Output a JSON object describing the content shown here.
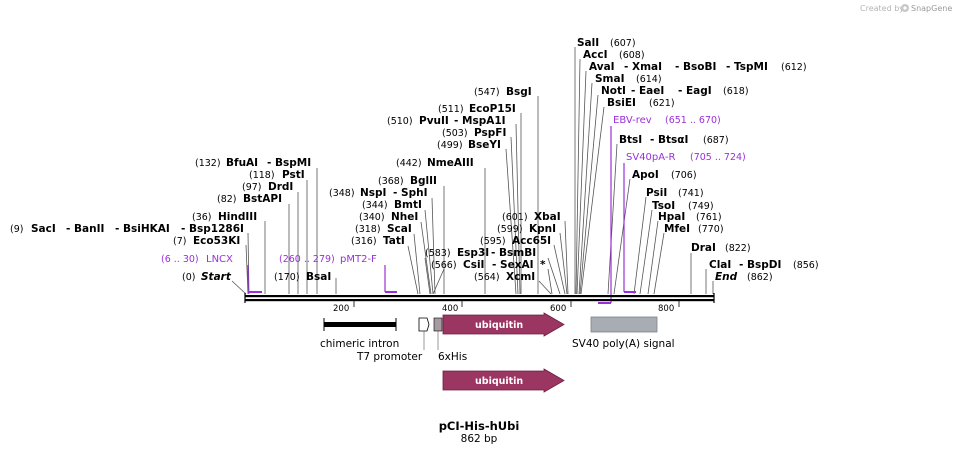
{
  "header": {
    "credit_prefix": "Created by",
    "credit_brand": "SnapGene"
  },
  "plasmid": {
    "name": "pCI-His-hUbi",
    "length_label": "862 bp",
    "length_bp": 862
  },
  "ruler": {
    "ticks": [
      "200",
      "400",
      "600",
      "800"
    ]
  },
  "sites": [
    {
      "pos": "(607)",
      "names": [
        "SalI"
      ]
    },
    {
      "pos": "(608)",
      "names": [
        "AccI"
      ]
    },
    {
      "pos": "(612)",
      "names": [
        "AvaI",
        "- XmaI",
        "- BsoBI",
        "- TspMI"
      ]
    },
    {
      "pos": "(614)",
      "names": [
        "SmaI"
      ]
    },
    {
      "pos": "(618)",
      "names": [
        "NotI",
        "- EaeI",
        "- EagI"
      ]
    },
    {
      "pos": "(621)",
      "names": [
        "BsiEI"
      ]
    },
    {
      "pos": "(687)",
      "names": [
        "BtsI",
        "- BtsαI"
      ]
    },
    {
      "pos": "(706)",
      "names": [
        "ApoI"
      ]
    },
    {
      "pos": "(741)",
      "names": [
        "PsiI"
      ]
    },
    {
      "pos": "(749)",
      "names": [
        "TsoI"
      ]
    },
    {
      "pos": "(761)",
      "names": [
        "HpaI"
      ]
    },
    {
      "pos": "(770)",
      "names": [
        "MfeI"
      ]
    },
    {
      "pos": "(822)",
      "names": [
        "DraI"
      ]
    },
    {
      "pos": "(856)",
      "names": [
        "ClaI",
        "- BspDI"
      ]
    },
    {
      "pos": "(862)",
      "names": [
        "End"
      ]
    },
    {
      "pos": "(547)",
      "names": [
        "BsgI"
      ]
    },
    {
      "pos": "(511)",
      "names": [
        "EcoP15I"
      ]
    },
    {
      "pos": "(510)",
      "names": [
        "PvuII",
        "- MspA1I"
      ]
    },
    {
      "pos": "(503)",
      "names": [
        "PspFI"
      ]
    },
    {
      "pos": "(499)",
      "names": [
        "BseYI"
      ]
    },
    {
      "pos": "(442)",
      "names": [
        "NmeAIII"
      ]
    },
    {
      "pos": "(132)",
      "names": [
        "BfuAI",
        "- BspMI"
      ]
    },
    {
      "pos": "(118)",
      "names": [
        "PstI"
      ]
    },
    {
      "pos": "(97)",
      "names": [
        "DrdI"
      ]
    },
    {
      "pos": "(82)",
      "names": [
        "BstAPI"
      ]
    },
    {
      "pos": "(36)",
      "names": [
        "HindIII"
      ]
    },
    {
      "pos": "(9)",
      "names": [
        "SacI",
        "- BanII",
        "- BsiHKAI",
        "- Bsp1286I"
      ]
    },
    {
      "pos": "(7)",
      "names": [
        "Eco53KI"
      ]
    },
    {
      "pos": "(0)",
      "names": [
        "Start"
      ]
    },
    {
      "pos": "(170)",
      "names": [
        "BsaI"
      ]
    },
    {
      "pos": "(368)",
      "names": [
        "BglII"
      ]
    },
    {
      "pos": "(348)",
      "names": [
        "NspI",
        "- SphI"
      ]
    },
    {
      "pos": "(344)",
      "names": [
        "BmtI"
      ]
    },
    {
      "pos": "(340)",
      "names": [
        "NheI"
      ]
    },
    {
      "pos": "(318)",
      "names": [
        "ScaI"
      ]
    },
    {
      "pos": "(316)",
      "names": [
        "TatI"
      ]
    },
    {
      "pos": "(601)",
      "names": [
        "XbaI"
      ]
    },
    {
      "pos": "(599)",
      "names": [
        "KpnI"
      ]
    },
    {
      "pos": "(595)",
      "names": [
        "Acc65I"
      ]
    },
    {
      "pos": "(583)",
      "names": [
        "Esp3I",
        "- BsmBI"
      ]
    },
    {
      "pos": "(566)",
      "names": [
        "CsiI",
        "- SexAI",
        "*"
      ]
    },
    {
      "pos": "(564)",
      "names": [
        "XcmI"
      ]
    }
  ],
  "primers": [
    {
      "name": "EBV-rev",
      "range": "(651 .. 670)"
    },
    {
      "name": "SV40pA-R",
      "range": "(705 .. 724)"
    },
    {
      "name": "LNCX",
      "range": "(6 .. 30)"
    },
    {
      "name": "pMT2-F",
      "range": "(260 .. 279)"
    }
  ],
  "features": {
    "chimeric_intron": "chimeric intron",
    "t7_promoter": "T7 promoter",
    "his_tag": "6xHis",
    "ubiquitin": "ubiquitin",
    "ubiquitin_orf": "ubiquitin",
    "sv40_polya": "SV40 poly(A) signal"
  },
  "colors": {
    "ubiquitin": "#9b3562",
    "primer": "#9b30d8",
    "sv40": "#a8adb3",
    "his": "#a89aa2"
  }
}
